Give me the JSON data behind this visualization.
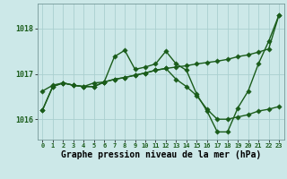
{
  "bg_color": "#cce8e8",
  "grid_color": "#aacfcf",
  "line_color": "#1a5c1a",
  "title": "Graphe pression niveau de la mer (hPa)",
  "title_fontsize": 7.0,
  "yticks": [
    1016,
    1017,
    1018
  ],
  "ylim": [
    1015.55,
    1018.55
  ],
  "xlim": [
    -0.5,
    23.5
  ],
  "series1_x": [
    0,
    1,
    2,
    3,
    4,
    5,
    6,
    7,
    8,
    9,
    10,
    11,
    12,
    13,
    14,
    15,
    16,
    17,
    18,
    19,
    20,
    21,
    22,
    23
  ],
  "series1_y": [
    1016.2,
    1016.72,
    1016.8,
    1016.75,
    1016.72,
    1016.72,
    1016.82,
    1017.38,
    1017.52,
    1017.1,
    1017.15,
    1017.22,
    1017.5,
    1017.22,
    1017.08,
    1016.55,
    1016.18,
    1015.72,
    1015.72,
    1016.25,
    1016.62,
    1017.22,
    1017.72,
    1018.3
  ],
  "series2_x": [
    0,
    1,
    2,
    3,
    4,
    5,
    6,
    7,
    8,
    9,
    10,
    11,
    12,
    13,
    14,
    15,
    16,
    17,
    18,
    19,
    20,
    21,
    22,
    23
  ],
  "series2_y": [
    1016.62,
    1016.75,
    1016.8,
    1016.75,
    1016.72,
    1016.8,
    1016.82,
    1016.88,
    1016.92,
    1016.97,
    1017.02,
    1017.08,
    1017.12,
    1017.15,
    1017.18,
    1017.22,
    1017.25,
    1017.28,
    1017.32,
    1017.38,
    1017.42,
    1017.48,
    1017.55,
    1018.3
  ],
  "series3_x": [
    0,
    1,
    2,
    3,
    4,
    5,
    6,
    7,
    8,
    9,
    10,
    11,
    12,
    13,
    14,
    15,
    16,
    17,
    18,
    19,
    20,
    21,
    22,
    23
  ],
  "series3_y": [
    1016.2,
    1016.72,
    1016.8,
    1016.75,
    1016.72,
    1016.72,
    1016.82,
    1016.88,
    1016.92,
    1016.97,
    1017.02,
    1017.08,
    1017.12,
    1016.88,
    1016.72,
    1016.52,
    1016.22,
    1016.0,
    1016.0,
    1016.05,
    1016.1,
    1016.18,
    1016.22,
    1016.28
  ]
}
